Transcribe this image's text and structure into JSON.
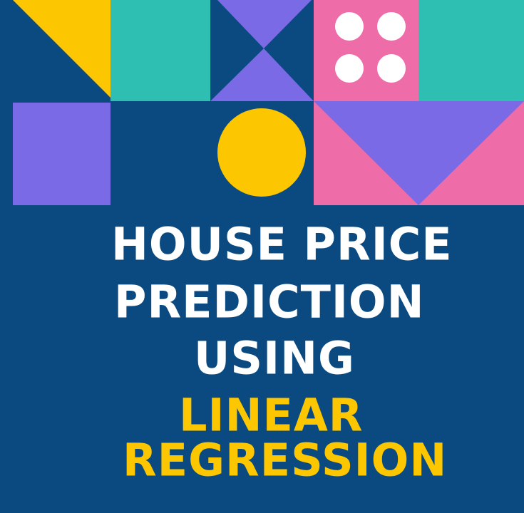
{
  "title": {
    "line1": "HOUSE PRICE",
    "line2": "PREDICTION",
    "line3": "USING",
    "line4": "LINEAR",
    "line5": "REGRESSION"
  },
  "colors": {
    "background": "#0a4a80",
    "yellow": "#fcc600",
    "teal": "#2ebfb2",
    "purple": "#7a6ae6",
    "pink": "#ee6ca8",
    "white": "#ffffff"
  },
  "decoration": {
    "shapes": [
      "yellow-triangle",
      "teal-square",
      "purple-bowtie",
      "pink-dice-square",
      "teal-square-right",
      "purple-square",
      "yellow-circle",
      "pink-purple-triangle-panel"
    ]
  }
}
